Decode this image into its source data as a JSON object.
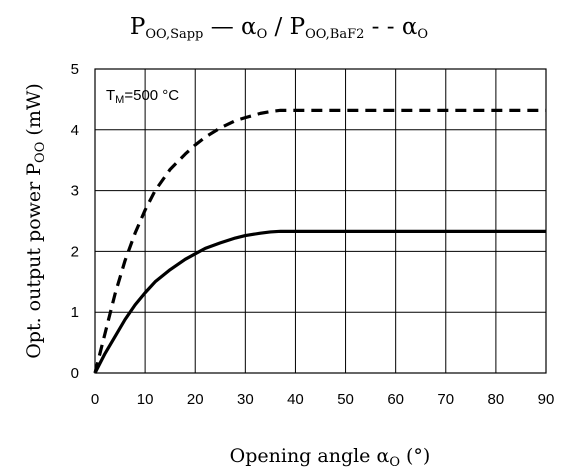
{
  "chart_data": {
    "type": "line",
    "title": {
      "part1_main": "P",
      "part1_sub": "OO,Sapp",
      "dash1": " — ",
      "alpha1_main": "α",
      "alpha1_sub": "O",
      "sep": " / ",
      "part2_main": "P",
      "part2_sub": "OO,BaF2",
      "dash2": " - - ",
      "alpha2_main": "α",
      "alpha2_sub": "O"
    },
    "xlabel": {
      "main": "Opening angle ",
      "alpha_main": "α",
      "alpha_sub": "O",
      "unit": " (°)"
    },
    "ylabel": {
      "main": "Opt. output power P",
      "sub": "OO",
      "unit": " (mW)"
    },
    "annotation": {
      "main": "T",
      "sub": "M",
      "rest": "=500 °C"
    },
    "xlim": [
      0,
      90
    ],
    "ylim": [
      0,
      5
    ],
    "x_ticks": [
      0,
      10,
      20,
      30,
      40,
      50,
      60,
      70,
      80,
      90
    ],
    "y_ticks": [
      0,
      1,
      2,
      3,
      4,
      5
    ],
    "grid": true,
    "series": [
      {
        "style": "solid",
        "color": "#000000",
        "x": [
          0,
          2,
          4,
          6,
          8,
          10,
          12,
          15,
          18,
          20,
          22,
          25,
          28,
          30,
          33,
          35,
          37,
          40,
          50,
          60,
          70,
          80,
          90
        ],
        "y": [
          0,
          0.32,
          0.6,
          0.88,
          1.12,
          1.32,
          1.5,
          1.7,
          1.87,
          1.96,
          2.05,
          2.14,
          2.22,
          2.26,
          2.3,
          2.32,
          2.33,
          2.33,
          2.33,
          2.33,
          2.33,
          2.33,
          2.33
        ]
      },
      {
        "style": "dashed",
        "color": "#000000",
        "x": [
          0,
          2,
          4,
          6,
          8,
          10,
          12,
          15,
          18,
          20,
          22,
          25,
          28,
          30,
          33,
          35,
          37,
          40,
          50,
          60,
          70,
          80,
          90
        ],
        "y": [
          0,
          0.65,
          1.3,
          1.85,
          2.3,
          2.68,
          3.0,
          3.35,
          3.6,
          3.75,
          3.88,
          4.03,
          4.15,
          4.2,
          4.27,
          4.3,
          4.32,
          4.32,
          4.32,
          4.32,
          4.32,
          4.32,
          4.32
        ]
      }
    ]
  }
}
